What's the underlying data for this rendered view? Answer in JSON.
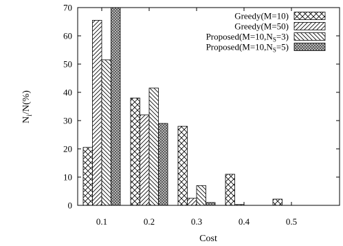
{
  "chart_data": {
    "type": "bar",
    "xlabel": "Cost",
    "ylabel": "N",
    "ylabel_sub": "i",
    "ylabel_suffix": "/N(%)",
    "x_ticks": [
      "0.1",
      "0.2",
      "0.3",
      "0.4",
      "0.5"
    ],
    "y_ticks": [
      "0",
      "10",
      "20",
      "30",
      "40",
      "50",
      "60",
      "70"
    ],
    "ylim": [
      0,
      70
    ],
    "grid": false,
    "legend_position": "top-right",
    "categories": [
      "0.1",
      "0.2",
      "0.3",
      "0.4",
      "0.5"
    ],
    "series": [
      {
        "name": "Greedy(M=10)",
        "legend": [
          "Greedy(M=10)"
        ],
        "pattern": "crosshatch",
        "values": [
          20.5,
          38,
          28,
          11,
          2.2
        ]
      },
      {
        "name": "Greedy(M=50)",
        "legend": [
          "Greedy(M=50)"
        ],
        "pattern": "diag-right",
        "values": [
          65.5,
          32,
          2.5,
          0.3,
          0
        ]
      },
      {
        "name": "Proposed(M=10,NS=3)",
        "legend": [
          "Proposed(M=10,N",
          "S",
          "=3)"
        ],
        "pattern": "diag-left",
        "values": [
          51.5,
          41.5,
          7,
          0,
          0
        ]
      },
      {
        "name": "Proposed(M=10,NS=5)",
        "legend": [
          "Proposed(M=10,N",
          "S",
          "=5)"
        ],
        "pattern": "dense",
        "values": [
          70,
          29,
          1,
          0,
          0
        ]
      }
    ]
  }
}
